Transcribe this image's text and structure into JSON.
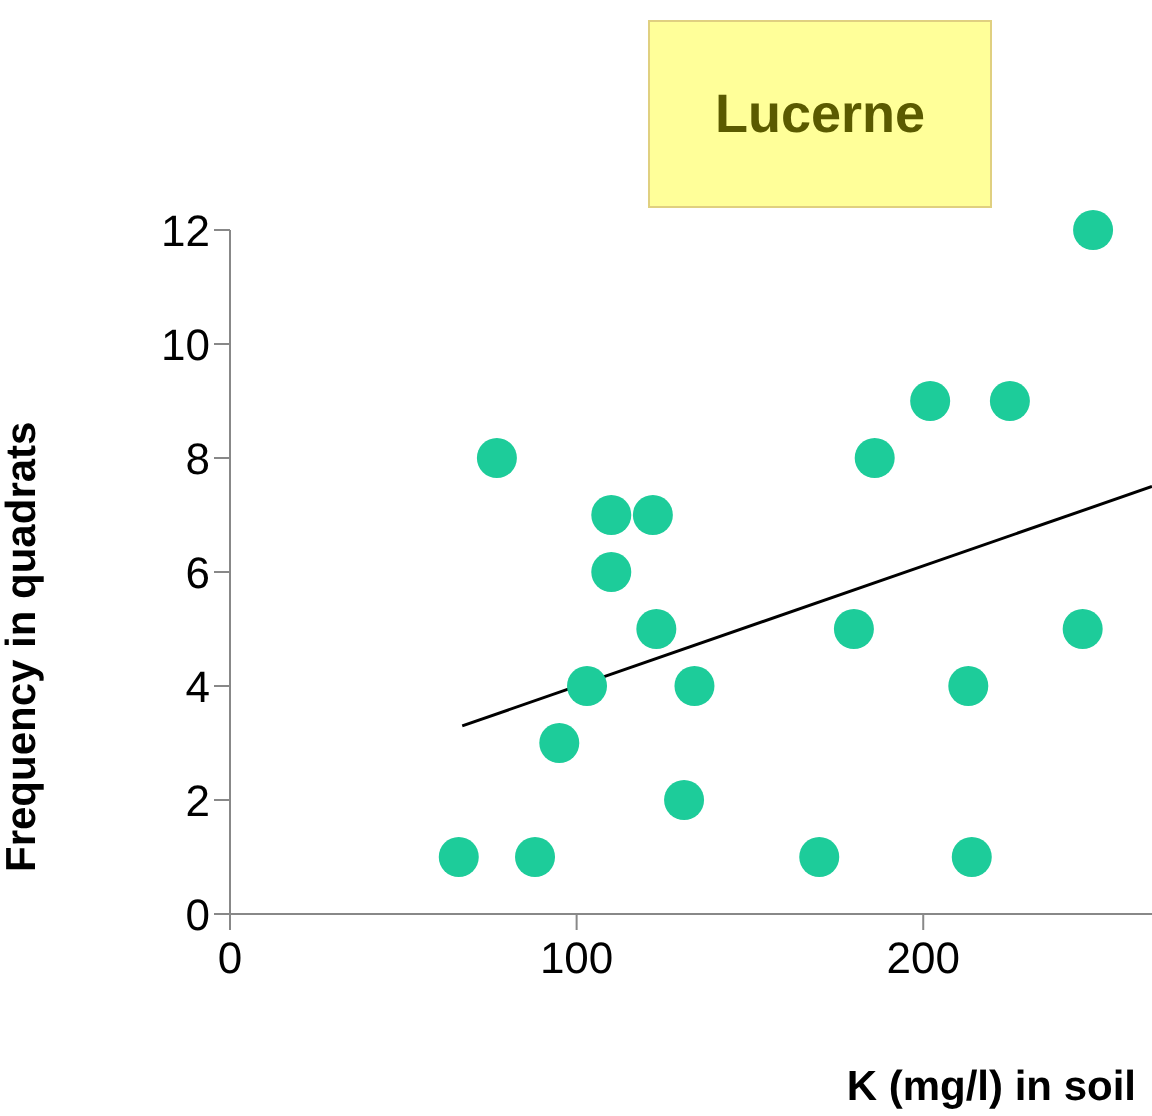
{
  "chart_data": {
    "type": "scatter",
    "title": "Lucerne",
    "xlabel": "K (mg/l) in soil",
    "ylabel": "Frequency in quadrats",
    "xlim": [
      0,
      266
    ],
    "xticks": [
      0,
      100,
      200
    ],
    "ylim": [
      0,
      12
    ],
    "yticks": [
      0,
      2,
      4,
      6,
      8,
      10,
      12
    ],
    "series": [
      {
        "color": "#1dcc9a",
        "marker": "circle",
        "x": [
          66,
          77,
          88,
          95,
          103,
          110,
          110,
          122,
          123,
          131,
          134,
          170,
          180,
          186,
          202,
          213,
          214,
          225,
          246,
          249
        ],
        "values": [
          1,
          8,
          1,
          3,
          4,
          7,
          6,
          7,
          5,
          2,
          4,
          1,
          5,
          8,
          9,
          4,
          1,
          9,
          5,
          12
        ]
      },
      {
        "type": "line",
        "color": "#000000",
        "marker": "none",
        "x": [
          67,
          266
        ],
        "values": [
          3.3,
          7.5
        ]
      }
    ]
  }
}
